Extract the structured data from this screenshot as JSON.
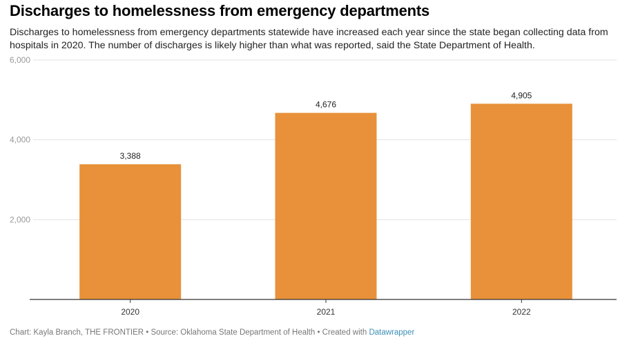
{
  "title": "Discharges to homelessness from emergency departments",
  "subtitle": "Discharges to homelessness from emergency departments statewide have increased each year since the state began collecting data from hospitals in 2020. The number of discharges is likely higher than what was reported, said the State Department of Health.",
  "footer": {
    "text": "Chart: Kayla Branch, THE FRONTIER • Source: Oklahoma State Department of Health • Created with ",
    "link": "Datawrapper"
  },
  "chart_data": {
    "type": "bar",
    "categories": [
      "2020",
      "2021",
      "2022"
    ],
    "values": [
      3388,
      4676,
      4905
    ],
    "value_labels": [
      "3,388",
      "4,676",
      "4,905"
    ],
    "ylim": [
      0,
      6000
    ],
    "yticks": [
      2000,
      4000,
      6000
    ],
    "ytick_labels": [
      "2,000",
      "4,000",
      "6,000"
    ],
    "grid": true,
    "bar_color": "#e8913a"
  }
}
